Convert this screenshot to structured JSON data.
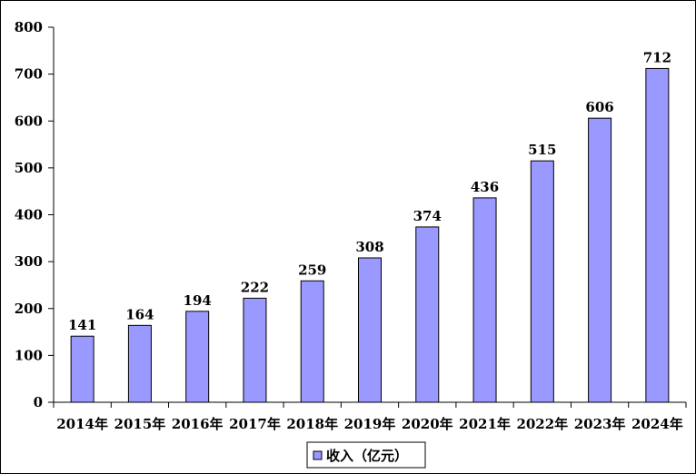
{
  "chart_data": {
    "type": "bar",
    "title": "",
    "xlabel": "",
    "ylabel": "",
    "categories": [
      "2014年",
      "2015年",
      "2016年",
      "2017年",
      "2018年",
      "2019年",
      "2020年",
      "2021年",
      "2022年",
      "2023年",
      "2024年"
    ],
    "series": [
      {
        "name": "收入（亿元）",
        "values": [
          141,
          164,
          194,
          222,
          259,
          308,
          374,
          436,
          515,
          606,
          712
        ],
        "color": "#9999ff"
      }
    ],
    "ylim": [
      0,
      800
    ],
    "yticks": [
      0,
      100,
      200,
      300,
      400,
      500,
      600,
      700,
      800
    ],
    "grid": false,
    "legend_position": "bottom-center",
    "data_labels": true
  }
}
